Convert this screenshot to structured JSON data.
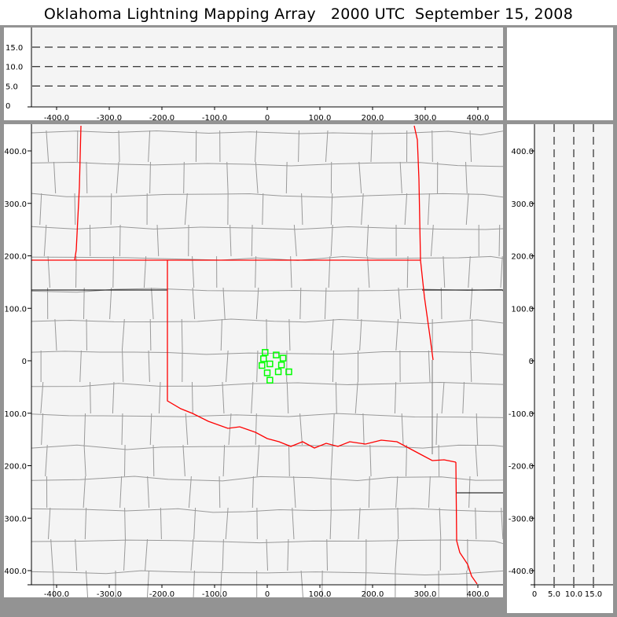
{
  "title": "Oklahoma Lightning Mapping Array   2000 UTC  September 15, 2008",
  "colors": {
    "panel_bg": "#f4f4f4",
    "frame": "#939393",
    "state_border": "#ff0000",
    "county_line": "#999999",
    "source_marker": "#00ff00"
  },
  "alt_panel": {
    "y_ticks": [
      "0",
      "5.0",
      "10.0",
      "15.0"
    ],
    "x_ticks": [
      "-400.0",
      "-300.0",
      "-200.0",
      "-100.0",
      "0",
      "100.0",
      "200.0",
      "300.0",
      "400.0"
    ],
    "y_range": [
      0,
      19
    ],
    "x_range": [
      -450,
      450
    ],
    "dashed_levels": [
      5,
      10,
      15
    ]
  },
  "map": {
    "x_ticks": [
      "-400.0",
      "-300.0",
      "-200.0",
      "-100.0",
      "0",
      "100.0",
      "200.0",
      "300.0",
      "400.0"
    ],
    "y_ticks": [
      "400.0",
      "300.0",
      "200.0",
      "100.0",
      "0",
      "-100.0",
      "-200.0",
      "-300.0",
      "-400.0"
    ],
    "x_range": [
      -450,
      450
    ],
    "y_range": [
      -450,
      450
    ],
    "sources": [
      [
        -4,
        16
      ],
      [
        17,
        11
      ],
      [
        30,
        5
      ],
      [
        -7,
        4
      ],
      [
        5,
        -6
      ],
      [
        -10,
        -9
      ],
      [
        27,
        -8
      ],
      [
        0,
        -23
      ],
      [
        21,
        -21
      ],
      [
        41,
        -21
      ],
      [
        5,
        -37
      ]
    ]
  },
  "side_panel": {
    "x_ticks": [
      "0",
      "5.0",
      "10.0",
      "15.0"
    ],
    "y_ticks": [
      "400.0",
      "300.0",
      "200.0",
      "100.0",
      "0",
      "-100.0",
      "-200.0",
      "-300.0",
      "-400.0"
    ],
    "dashed_levels": [
      5,
      10,
      15
    ]
  }
}
